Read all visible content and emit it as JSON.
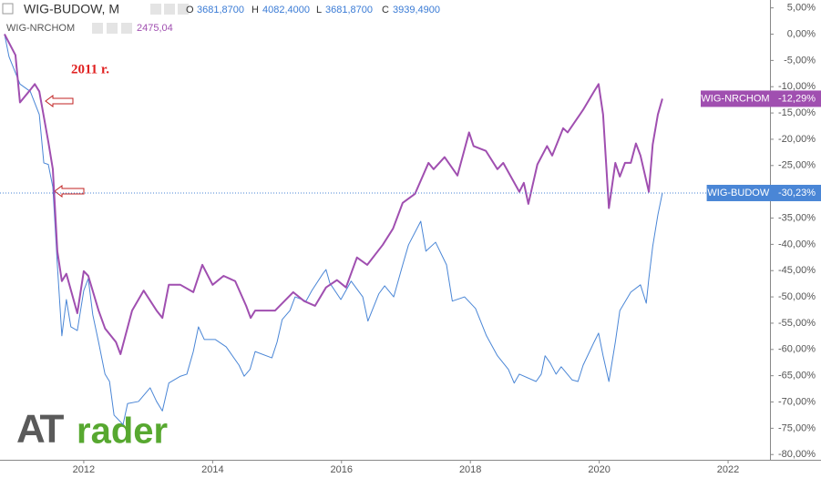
{
  "chart_data": {
    "type": "line",
    "header": {
      "symbol": "WIG-BUDOW, M",
      "o_label": "O",
      "open": "3681,8700",
      "h_label": "H",
      "high": "4082,4000",
      "l_label": "L",
      "low": "3681,8700",
      "c_label": "C",
      "close": "3939,4900"
    },
    "header2": {
      "symbol": "WIG-NRCHOM",
      "value": "2475,04"
    },
    "annotation": "2011 r.",
    "logo": [
      "AT",
      "rader"
    ],
    "xlim": [
      2010.7,
      2022.65
    ],
    "xticks": [
      2012,
      2014,
      2016,
      2018,
      2020,
      2022
    ],
    "ylim": [
      -81,
      6.5
    ],
    "yticks": [
      {
        "value": 5,
        "label": "5,00%"
      },
      {
        "value": 0,
        "label": "0,00%"
      },
      {
        "value": -5,
        "label": "-5,00%"
      },
      {
        "value": -10,
        "label": "-10,00%"
      },
      {
        "value": -15,
        "label": "-15,00%"
      },
      {
        "value": -20,
        "label": "-20,00%"
      },
      {
        "value": -25,
        "label": "-25,00%"
      },
      {
        "value": -30,
        "label": "-30,00%"
      },
      {
        "value": -35,
        "label": "-35,00%"
      },
      {
        "value": -40,
        "label": "-40,00%"
      },
      {
        "value": -45,
        "label": "-45,00%"
      },
      {
        "value": -50,
        "label": "-50,00%"
      },
      {
        "value": -55,
        "label": "-55,00%"
      },
      {
        "value": -60,
        "label": "-60,00%"
      },
      {
        "value": -65,
        "label": "-65,00%"
      },
      {
        "value": -70,
        "label": "-70,00%"
      },
      {
        "value": -75,
        "label": "-75,00%"
      },
      {
        "value": -80,
        "label": "-80,00%"
      }
    ],
    "series": [
      {
        "name": "WIG-NRCHOM",
        "color": "#a04fb0",
        "width": 2,
        "x": [
          2010.77,
          2010.94,
          2011.01,
          2011.17,
          2011.24,
          2011.31,
          2011.45,
          2011.52,
          2011.59,
          2011.66,
          2011.73,
          2011.9,
          2012.0,
          2012.07,
          2012.23,
          2012.33,
          2012.5,
          2012.57,
          2012.75,
          2012.93,
          2013.13,
          2013.22,
          2013.32,
          2013.5,
          2013.7,
          2013.84,
          2014.0,
          2014.17,
          2014.35,
          2014.52,
          2014.59,
          2014.66,
          2014.97,
          2015.25,
          2015.42,
          2015.59,
          2015.76,
          2015.93,
          2016.07,
          2016.24,
          2016.4,
          2016.64,
          2016.8,
          2016.95,
          2017.14,
          2017.35,
          2017.43,
          2017.6,
          2017.8,
          2017.98,
          2018.05,
          2018.24,
          2018.42,
          2018.51,
          2018.76,
          2018.83,
          2018.9,
          2019.04,
          2019.19,
          2019.27,
          2019.44,
          2019.51,
          2019.75,
          2019.92,
          2019.99,
          2020.06,
          2020.15,
          2020.25,
          2020.32,
          2020.4,
          2020.49,
          2020.57,
          2020.64,
          2020.77,
          2020.83,
          2020.91,
          2020.98
        ],
        "values": [
          0,
          -4.0,
          -13.0,
          -10.6,
          -9.5,
          -10.9,
          -20.5,
          -25.7,
          -41.3,
          -47.0,
          -45.6,
          -53.1,
          -45.1,
          -46.0,
          -52.6,
          -56.0,
          -58.6,
          -60.9,
          -52.6,
          -48.8,
          -52.6,
          -54.0,
          -47.7,
          -47.7,
          -49.1,
          -43.9,
          -47.7,
          -46.0,
          -47.0,
          -51.7,
          -54.0,
          -52.6,
          -52.6,
          -49.1,
          -50.8,
          -51.7,
          -48.2,
          -46.8,
          -48.2,
          -42.5,
          -43.9,
          -40.1,
          -37.0,
          -32.1,
          -30.4,
          -24.5,
          -25.7,
          -23.4,
          -26.9,
          -18.7,
          -21.3,
          -22.2,
          -25.7,
          -24.5,
          -30.0,
          -28.3,
          -32.3,
          -24.8,
          -21.3,
          -23.1,
          -17.9,
          -18.7,
          -14.4,
          -10.9,
          -9.5,
          -15.3,
          -33.1,
          -24.5,
          -27.1,
          -24.5,
          -24.5,
          -20.8,
          -23.1,
          -30.0,
          -21.0,
          -15.3,
          -12.29
        ],
        "value_labels": [
          null,
          null,
          null,
          null,
          null,
          null,
          null,
          null,
          null,
          null,
          null,
          null,
          null,
          null,
          null,
          null,
          null,
          null,
          null,
          null,
          null,
          null,
          null,
          null,
          null,
          null,
          null,
          null,
          null,
          null,
          null,
          null,
          null,
          null,
          null,
          null,
          null,
          null,
          null,
          null,
          null,
          null,
          null,
          null,
          null,
          null,
          null,
          null,
          null,
          null,
          null,
          null,
          null,
          null,
          null,
          null,
          null,
          null,
          null,
          null,
          null,
          null,
          null,
          null,
          null,
          null,
          null,
          null,
          null,
          null,
          null,
          null,
          null,
          null,
          null,
          null,
          "-12,29%"
        ]
      },
      {
        "name": "WIG-BUDOW",
        "color": "#4a86d6",
        "width": 1,
        "x": [
          2010.77,
          2010.84,
          2011.01,
          2011.17,
          2011.31,
          2011.38,
          2011.45,
          2011.52,
          2011.59,
          2011.66,
          2011.73,
          2011.8,
          2011.9,
          2012.0,
          2012.07,
          2012.14,
          2012.23,
          2012.33,
          2012.4,
          2012.47,
          2012.61,
          2012.68,
          2012.85,
          2013.03,
          2013.13,
          2013.22,
          2013.32,
          2013.5,
          2013.6,
          2013.7,
          2013.78,
          2013.87,
          2014.04,
          2014.21,
          2014.41,
          2014.49,
          2014.58,
          2014.66,
          2014.92,
          2015.0,
          2015.08,
          2015.2,
          2015.28,
          2015.45,
          2015.54,
          2015.71,
          2015.76,
          2015.82,
          2015.99,
          2016.15,
          2016.33,
          2016.41,
          2016.58,
          2016.67,
          2016.81,
          2016.95,
          2017.04,
          2017.23,
          2017.31,
          2017.46,
          2017.63,
          2017.72,
          2017.91,
          2018.08,
          2018.25,
          2018.42,
          2018.59,
          2018.68,
          2018.76,
          2019.02,
          2019.1,
          2019.16,
          2019.24,
          2019.33,
          2019.41,
          2019.58,
          2019.67,
          2019.75,
          2019.92,
          2019.99,
          2020.06,
          2020.15,
          2020.25,
          2020.32,
          2020.49,
          2020.64,
          2020.73,
          2020.77,
          2020.83,
          2020.91,
          2020.98
        ],
        "values": [
          0,
          -4.3,
          -9.5,
          -10.9,
          -15.3,
          -24.5,
          -24.8,
          -29.1,
          -43.9,
          -57.4,
          -50.5,
          -55.7,
          -56.4,
          -48.8,
          -46.5,
          -53.4,
          -58.6,
          -64.7,
          -66.1,
          -72.5,
          -74.3,
          -70.3,
          -69.9,
          -67.3,
          -69.9,
          -71.7,
          -66.4,
          -65.1,
          -64.7,
          -60.4,
          -55.7,
          -58.1,
          -58.1,
          -59.5,
          -63.0,
          -65.1,
          -63.8,
          -60.4,
          -61.6,
          -58.6,
          -54.3,
          -52.6,
          -50.0,
          -50.8,
          -48.8,
          -45.6,
          -44.8,
          -47.4,
          -50.5,
          -47.0,
          -50.0,
          -54.6,
          -49.4,
          -47.9,
          -50.0,
          -43.9,
          -40.1,
          -35.6,
          -41.3,
          -39.6,
          -43.9,
          -50.8,
          -50.0,
          -52.2,
          -57.4,
          -61.2,
          -63.8,
          -66.4,
          -64.7,
          -66.1,
          -64.7,
          -61.2,
          -62.6,
          -64.7,
          -63.3,
          -65.8,
          -66.1,
          -63.0,
          -58.6,
          -56.9,
          -61.2,
          -66.1,
          -58.6,
          -52.6,
          -49.1,
          -47.7,
          -51.2,
          -46.5,
          -40.4,
          -34.4,
          -30.23
        ],
        "value_labels": [
          null,
          null,
          null,
          null,
          null,
          null,
          null,
          null,
          null,
          null,
          null,
          null,
          null,
          null,
          null,
          null,
          null,
          null,
          null,
          null,
          null,
          null,
          null,
          null,
          null,
          null,
          null,
          null,
          null,
          null,
          null,
          null,
          null,
          null,
          null,
          null,
          null,
          null,
          null,
          null,
          null,
          null,
          null,
          null,
          null,
          null,
          null,
          null,
          null,
          null,
          null,
          null,
          null,
          null,
          null,
          null,
          null,
          null,
          null,
          null,
          null,
          null,
          null,
          null,
          null,
          null,
          null,
          null,
          null,
          null,
          null,
          null,
          null,
          null,
          null,
          null,
          null,
          null,
          null,
          null,
          null,
          null,
          null,
          null,
          null,
          null,
          null,
          null,
          null,
          null,
          "-30,23%"
        ]
      }
    ]
  }
}
